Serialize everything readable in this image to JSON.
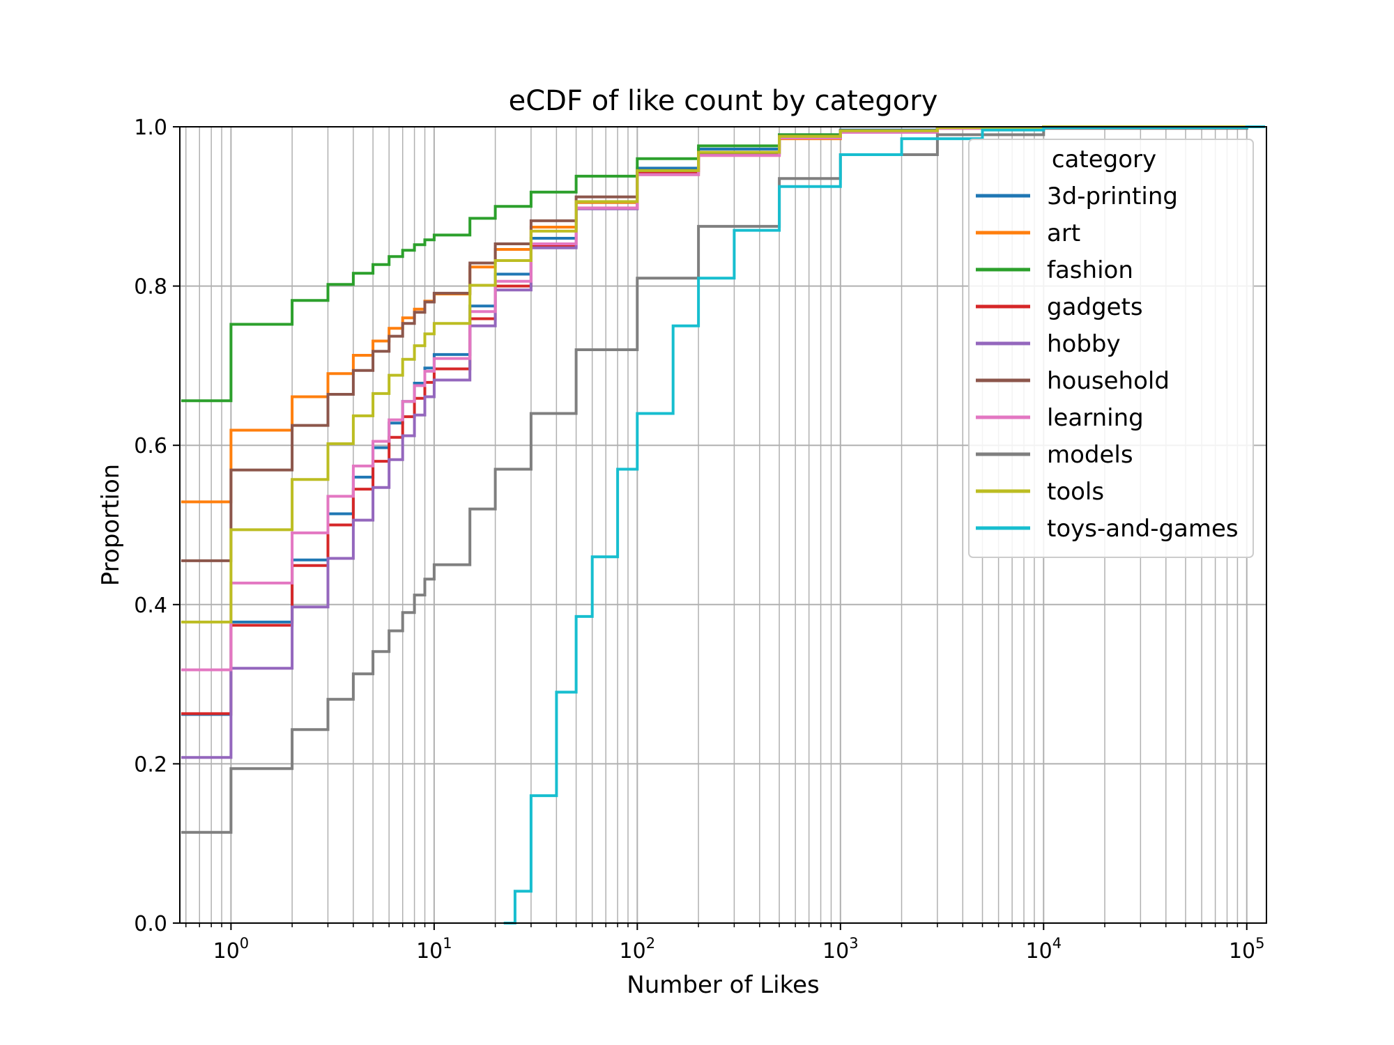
{
  "chart_data": {
    "type": "line",
    "title": "eCDF of like count by category",
    "xlabel": "Number of Likes",
    "ylabel": "Proportion",
    "xscale": "log",
    "xlim": [
      0.56,
      125000
    ],
    "ylim": [
      0,
      1
    ],
    "grid": "major and minor, x and y",
    "legend_position": "top-right",
    "legend_title": "category",
    "x_ticks": [
      {
        "value": 1,
        "base": "10",
        "exp": "0"
      },
      {
        "value": 10,
        "base": "10",
        "exp": "1"
      },
      {
        "value": 100,
        "base": "10",
        "exp": "2"
      },
      {
        "value": 1000,
        "base": "10",
        "exp": "3"
      },
      {
        "value": 10000,
        "base": "10",
        "exp": "4"
      },
      {
        "value": 100000,
        "base": "10",
        "exp": "5"
      }
    ],
    "y_ticks": [
      "0.0",
      "0.2",
      "0.4",
      "0.6",
      "0.8",
      "1.0"
    ],
    "series": [
      {
        "name": "3d-printing",
        "color": "#1f77b4",
        "points": [
          [
            0,
            0.262
          ],
          [
            1,
            0.378
          ],
          [
            2,
            0.456
          ],
          [
            3,
            0.514
          ],
          [
            4,
            0.56
          ],
          [
            5,
            0.597
          ],
          [
            6,
            0.628
          ],
          [
            7,
            0.655
          ],
          [
            8,
            0.678
          ],
          [
            9,
            0.697
          ],
          [
            10,
            0.714
          ],
          [
            15,
            0.775
          ],
          [
            20,
            0.815
          ],
          [
            30,
            0.86
          ],
          [
            50,
            0.905
          ],
          [
            100,
            0.948
          ],
          [
            200,
            0.972
          ],
          [
            500,
            0.99
          ],
          [
            1000,
            0.996
          ],
          [
            3000,
            0.999
          ],
          [
            10000,
            1.0
          ],
          [
            100000,
            1.0
          ]
        ]
      },
      {
        "name": "art",
        "color": "#ff7f0e",
        "points": [
          [
            0,
            0.529
          ],
          [
            1,
            0.619
          ],
          [
            2,
            0.661
          ],
          [
            3,
            0.69
          ],
          [
            4,
            0.713
          ],
          [
            5,
            0.731
          ],
          [
            6,
            0.747
          ],
          [
            7,
            0.76
          ],
          [
            8,
            0.771
          ],
          [
            9,
            0.781
          ],
          [
            10,
            0.79
          ],
          [
            15,
            0.824
          ],
          [
            20,
            0.846
          ],
          [
            30,
            0.874
          ],
          [
            50,
            0.905
          ],
          [
            100,
            0.94
          ],
          [
            200,
            0.964
          ],
          [
            500,
            0.985
          ],
          [
            1000,
            0.993
          ],
          [
            3000,
            0.998
          ],
          [
            10000,
            1.0
          ],
          [
            100000,
            1.0
          ]
        ]
      },
      {
        "name": "fashion",
        "color": "#2ca02c",
        "points": [
          [
            0,
            0.656
          ],
          [
            1,
            0.752
          ],
          [
            2,
            0.782
          ],
          [
            3,
            0.802
          ],
          [
            4,
            0.816
          ],
          [
            5,
            0.827
          ],
          [
            6,
            0.837
          ],
          [
            7,
            0.845
          ],
          [
            8,
            0.852
          ],
          [
            9,
            0.858
          ],
          [
            10,
            0.864
          ],
          [
            15,
            0.885
          ],
          [
            20,
            0.9
          ],
          [
            30,
            0.918
          ],
          [
            50,
            0.938
          ],
          [
            100,
            0.96
          ],
          [
            200,
            0.976
          ],
          [
            500,
            0.99
          ],
          [
            1000,
            0.995
          ],
          [
            3000,
            0.999
          ],
          [
            10000,
            1.0
          ],
          [
            100000,
            1.0
          ]
        ]
      },
      {
        "name": "gadgets",
        "color": "#d62728",
        "points": [
          [
            0,
            0.263
          ],
          [
            1,
            0.374
          ],
          [
            2,
            0.449
          ],
          [
            3,
            0.5
          ],
          [
            4,
            0.545
          ],
          [
            5,
            0.58
          ],
          [
            6,
            0.61
          ],
          [
            7,
            0.636
          ],
          [
            8,
            0.659
          ],
          [
            9,
            0.679
          ],
          [
            10,
            0.696
          ],
          [
            15,
            0.759
          ],
          [
            20,
            0.8
          ],
          [
            30,
            0.85
          ],
          [
            50,
            0.898
          ],
          [
            100,
            0.943
          ],
          [
            200,
            0.968
          ],
          [
            500,
            0.988
          ],
          [
            1000,
            0.995
          ],
          [
            3000,
            0.999
          ],
          [
            10000,
            1.0
          ],
          [
            100000,
            1.0
          ]
        ]
      },
      {
        "name": "hobby",
        "color": "#9467bd",
        "points": [
          [
            0,
            0.208
          ],
          [
            1,
            0.32
          ],
          [
            2,
            0.397
          ],
          [
            3,
            0.458
          ],
          [
            4,
            0.506
          ],
          [
            5,
            0.547
          ],
          [
            6,
            0.582
          ],
          [
            7,
            0.612
          ],
          [
            8,
            0.638
          ],
          [
            9,
            0.661
          ],
          [
            10,
            0.682
          ],
          [
            15,
            0.75
          ],
          [
            20,
            0.795
          ],
          [
            30,
            0.848
          ],
          [
            50,
            0.897
          ],
          [
            100,
            0.94
          ],
          [
            200,
            0.966
          ],
          [
            500,
            0.987
          ],
          [
            1000,
            0.994
          ],
          [
            3000,
            0.999
          ],
          [
            10000,
            1.0
          ],
          [
            100000,
            1.0
          ]
        ]
      },
      {
        "name": "household",
        "color": "#8c564b",
        "points": [
          [
            0,
            0.455
          ],
          [
            1,
            0.569
          ],
          [
            2,
            0.625
          ],
          [
            3,
            0.664
          ],
          [
            4,
            0.694
          ],
          [
            5,
            0.718
          ],
          [
            6,
            0.737
          ],
          [
            7,
            0.753
          ],
          [
            8,
            0.767
          ],
          [
            9,
            0.78
          ],
          [
            10,
            0.791
          ],
          [
            15,
            0.829
          ],
          [
            20,
            0.853
          ],
          [
            30,
            0.882
          ],
          [
            50,
            0.912
          ],
          [
            100,
            0.945
          ],
          [
            200,
            0.967
          ],
          [
            500,
            0.987
          ],
          [
            1000,
            0.994
          ],
          [
            3000,
            0.999
          ],
          [
            10000,
            1.0
          ],
          [
            100000,
            1.0
          ]
        ]
      },
      {
        "name": "learning",
        "color": "#e377c2",
        "points": [
          [
            0,
            0.318
          ],
          [
            1,
            0.427
          ],
          [
            2,
            0.49
          ],
          [
            3,
            0.536
          ],
          [
            4,
            0.574
          ],
          [
            5,
            0.605
          ],
          [
            6,
            0.632
          ],
          [
            7,
            0.655
          ],
          [
            8,
            0.675
          ],
          [
            9,
            0.693
          ],
          [
            10,
            0.709
          ],
          [
            15,
            0.768
          ],
          [
            20,
            0.806
          ],
          [
            30,
            0.853
          ],
          [
            50,
            0.898
          ],
          [
            100,
            0.94
          ],
          [
            200,
            0.964
          ],
          [
            500,
            0.986
          ],
          [
            1000,
            0.993
          ],
          [
            3000,
            0.998
          ],
          [
            10000,
            1.0
          ],
          [
            100000,
            1.0
          ]
        ]
      },
      {
        "name": "models",
        "color": "#7f7f7f",
        "points": [
          [
            0,
            0.114
          ],
          [
            1,
            0.194
          ],
          [
            2,
            0.243
          ],
          [
            3,
            0.281
          ],
          [
            4,
            0.313
          ],
          [
            5,
            0.341
          ],
          [
            6,
            0.367
          ],
          [
            7,
            0.39
          ],
          [
            8,
            0.412
          ],
          [
            9,
            0.432
          ],
          [
            10,
            0.45
          ],
          [
            15,
            0.52
          ],
          [
            20,
            0.57
          ],
          [
            30,
            0.64
          ],
          [
            50,
            0.72
          ],
          [
            100,
            0.81
          ],
          [
            200,
            0.875
          ],
          [
            500,
            0.935
          ],
          [
            1000,
            0.965
          ],
          [
            3000,
            0.99
          ],
          [
            10000,
            0.998
          ],
          [
            100000,
            1.0
          ]
        ]
      },
      {
        "name": "tools",
        "color": "#bcbd22",
        "points": [
          [
            0,
            0.378
          ],
          [
            1,
            0.494
          ],
          [
            2,
            0.557
          ],
          [
            3,
            0.602
          ],
          [
            4,
            0.637
          ],
          [
            5,
            0.665
          ],
          [
            6,
            0.688
          ],
          [
            7,
            0.708
          ],
          [
            8,
            0.725
          ],
          [
            9,
            0.74
          ],
          [
            10,
            0.753
          ],
          [
            15,
            0.801
          ],
          [
            20,
            0.832
          ],
          [
            30,
            0.869
          ],
          [
            50,
            0.906
          ],
          [
            100,
            0.945
          ],
          [
            200,
            0.968
          ],
          [
            500,
            0.988
          ],
          [
            1000,
            0.995
          ],
          [
            3000,
            0.999
          ],
          [
            10000,
            1.0
          ],
          [
            100000,
            1.0
          ]
        ]
      },
      {
        "name": "toys-and-games",
        "color": "#17becf",
        "points": [
          [
            22,
            0.0
          ],
          [
            25,
            0.04
          ],
          [
            30,
            0.16
          ],
          [
            40,
            0.29
          ],
          [
            50,
            0.385
          ],
          [
            60,
            0.46
          ],
          [
            80,
            0.57
          ],
          [
            100,
            0.64
          ],
          [
            150,
            0.75
          ],
          [
            200,
            0.81
          ],
          [
            300,
            0.87
          ],
          [
            500,
            0.925
          ],
          [
            1000,
            0.965
          ],
          [
            2000,
            0.985
          ],
          [
            5000,
            0.996
          ],
          [
            10000,
            0.999
          ],
          [
            100000,
            1.0
          ]
        ]
      }
    ]
  }
}
